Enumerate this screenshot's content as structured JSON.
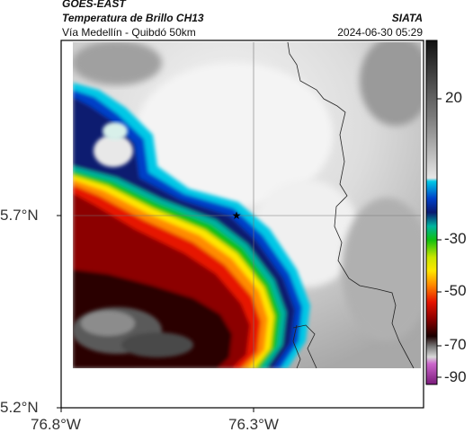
{
  "header": {
    "satellite": "GOES-EAST",
    "product": "Temperatura de Brillo CH13",
    "source": "SIATA",
    "region": "Vía Medellín - Quibdó 50km",
    "timestamp": "2024-06-30 05:29"
  },
  "axes": {
    "lat_labels": [
      "5.7°N",
      "5.2°N"
    ],
    "lon_labels": [
      "76.8°W",
      "76.3°W"
    ]
  },
  "colorbar": {
    "labels": [
      "20",
      "-30",
      "-50",
      "-70",
      "-90"
    ],
    "values": [
      20,
      -30,
      -50,
      -70,
      -90
    ],
    "range": [
      -95,
      45
    ]
  },
  "marker": {
    "symbol": "★",
    "name": "location-star"
  }
}
